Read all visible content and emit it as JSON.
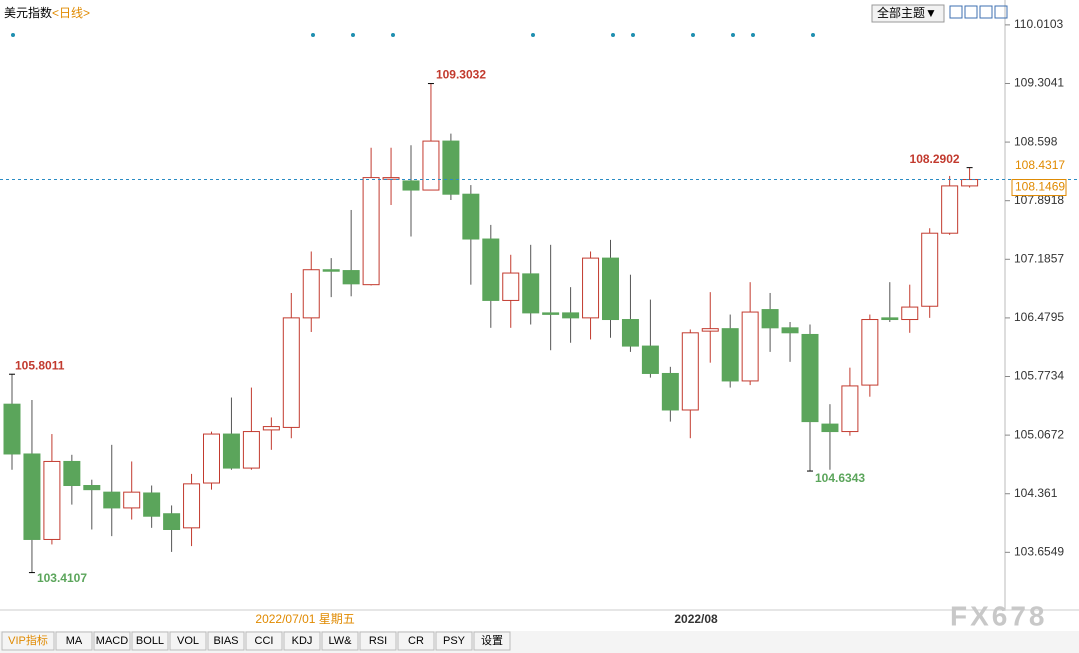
{
  "chart_data": {
    "type": "candlestick",
    "title": "美元指数",
    "subtitle": "<日线>",
    "categories": [
      null,
      null,
      null,
      null,
      null,
      null,
      null,
      null,
      null,
      null,
      null,
      null,
      "2022/07/01 星期五",
      null,
      null,
      null,
      null,
      null,
      null,
      null,
      null,
      null,
      null,
      null,
      null,
      null,
      null,
      null,
      null,
      null,
      null,
      null,
      null,
      "2022/08",
      null,
      null,
      null,
      null,
      null,
      null,
      null,
      null,
      null,
      null,
      null,
      null,
      null,
      null,
      null
    ],
    "open": [
      105.44,
      104.84,
      103.81,
      104.75,
      104.46,
      104.38,
      104.19,
      104.37,
      104.12,
      103.95,
      104.49,
      105.08,
      104.67,
      105.13,
      105.16,
      106.48,
      107.06,
      107.05,
      106.88,
      108.15,
      108.13,
      108.02,
      108.61,
      107.97,
      107.43,
      106.69,
      107.01,
      106.54,
      106.54,
      106.48,
      107.2,
      106.46,
      106.14,
      105.81,
      105.37,
      106.32,
      106.35,
      105.72,
      106.58,
      106.36,
      106.28,
      105.2,
      105.11,
      105.67,
      106.48,
      106.46,
      106.62,
      107.5,
      108.07
    ],
    "high": [
      105.8011,
      105.49,
      105.08,
      104.83,
      104.53,
      104.95,
      104.75,
      104.46,
      104.22,
      104.6,
      105.11,
      105.52,
      105.64,
      105.28,
      106.78,
      107.28,
      107.2,
      107.78,
      108.53,
      108.53,
      108.56,
      109.3032,
      108.7,
      108.08,
      107.6,
      107.24,
      107.36,
      107.36,
      106.85,
      107.28,
      107.42,
      107.0,
      106.7,
      105.89,
      106.34,
      106.79,
      106.52,
      106.91,
      106.78,
      106.43,
      106.4,
      105.44,
      105.88,
      106.52,
      106.91,
      106.88,
      107.56,
      108.19,
      108.2902
    ],
    "low": [
      104.65,
      103.4107,
      103.75,
      104.23,
      103.93,
      103.85,
      104.05,
      103.95,
      103.66,
      103.73,
      104.41,
      104.65,
      104.65,
      104.89,
      105.03,
      106.31,
      106.73,
      106.74,
      106.87,
      107.84,
      107.46,
      108.02,
      107.9,
      106.88,
      106.36,
      106.36,
      106.4,
      106.09,
      106.18,
      106.22,
      106.24,
      106.07,
      105.76,
      105.23,
      105.03,
      105.94,
      105.64,
      105.67,
      106.07,
      105.95,
      104.6343,
      104.65,
      105.06,
      105.53,
      106.43,
      106.3,
      106.48,
      107.48,
      108.05
    ],
    "close": [
      104.84,
      103.81,
      104.75,
      104.46,
      104.41,
      104.19,
      104.38,
      104.09,
      103.93,
      104.48,
      105.08,
      104.67,
      105.11,
      105.17,
      106.48,
      107.06,
      107.05,
      106.89,
      108.17,
      108.17,
      108.02,
      108.61,
      107.97,
      107.43,
      106.69,
      107.02,
      106.54,
      106.53,
      106.48,
      107.2,
      106.46,
      106.14,
      105.81,
      105.37,
      106.3,
      106.35,
      105.72,
      106.55,
      106.36,
      106.3,
      105.23,
      105.11,
      105.66,
      106.46,
      106.46,
      106.61,
      107.5,
      108.07,
      108.1469
    ],
    "up_color": "#c23a2e",
    "down_color": "#5ba55b",
    "ylim": [
      102.96,
      110.31
    ],
    "yticks": [
      110.0103,
      109.3041,
      108.598,
      107.8918,
      107.1857,
      106.4795,
      105.7734,
      105.0672,
      104.361,
      103.6549
    ],
    "ref_level": 108.4317
  },
  "toolbar": {
    "theme": "全部主题▼"
  },
  "tabs": [
    "VIP指标",
    "MA",
    "MACD",
    "BOLL",
    "VOL",
    "BIAS",
    "CCI",
    "KDJ",
    "LW&",
    "RSI",
    "CR",
    "PSY",
    "设置"
  ],
  "watermark": "FX678"
}
